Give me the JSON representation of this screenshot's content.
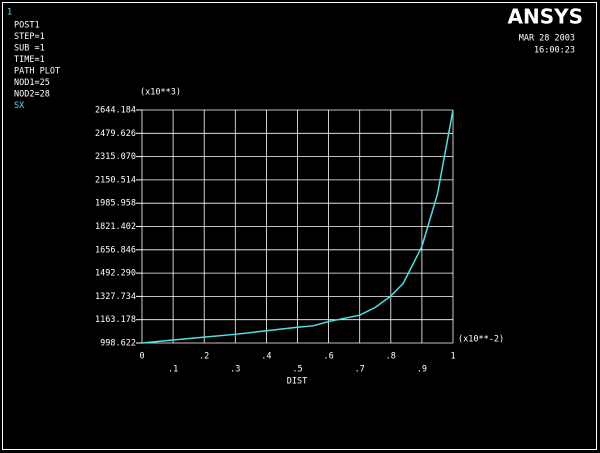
{
  "chart_data": {
    "type": "line",
    "window_number": "1",
    "info": [
      "POST1",
      "STEP=1",
      "SUB =1",
      "TIME=1",
      "PATH PLOT",
      "NOD1=25",
      "NOD2=28"
    ],
    "logo": "ANSYS",
    "date": "MAR 28 2003",
    "time": "16:00:23",
    "y_multiplier": "(x10**3)",
    "x_multiplier": "(x10**-2)",
    "xlabel": "DIST",
    "x": [
      0,
      0.1,
      0.2,
      0.3,
      0.4,
      0.5,
      0.55,
      0.6,
      0.7,
      0.75,
      0.8,
      0.84,
      0.9,
      0.95,
      1.0
    ],
    "series": [
      {
        "name": "SX",
        "color": "#4fe0e8",
        "values": [
          998.622,
          1020,
          1040,
          1060,
          1085,
          1110,
          1120,
          1150,
          1195,
          1250,
          1330,
          1420,
          1680,
          2050,
          2644.184
        ]
      }
    ],
    "xlim": [
      0,
      1
    ],
    "ylim": [
      998.622,
      2644.184
    ],
    "xticks": [
      0,
      {
        "value": 0.1,
        "label": ".1"
      },
      {
        "value": 0.2,
        "label": ".2"
      },
      {
        "value": 0.3,
        "label": ".3"
      },
      {
        "value": 0.4,
        "label": ".4"
      },
      {
        "value": 0.5,
        "label": ".5"
      },
      {
        "value": 0.6,
        "label": ".6"
      },
      {
        "value": 0.7,
        "label": ".7"
      },
      {
        "value": 0.8,
        "label": ".8"
      },
      {
        "value": 0.9,
        "label": ".9"
      },
      1
    ],
    "yticks": [
      998.622,
      {
        "value": 1163.178,
        "label": "1163.178"
      },
      {
        "value": 1327.734,
        "label": "1327.734"
      },
      {
        "value": 1492.29,
        "label": "1492.290"
      },
      {
        "value": 1656.846,
        "label": "1656.846"
      },
      {
        "value": 1821.402,
        "label": "1821.402"
      },
      {
        "value": 1985.958,
        "label": "1985.958"
      },
      {
        "value": 2150.514,
        "label": "2150.514"
      },
      {
        "value": 2315.07,
        "label": "2315.070"
      },
      2479.626,
      2644.184
    ],
    "grid": true
  }
}
